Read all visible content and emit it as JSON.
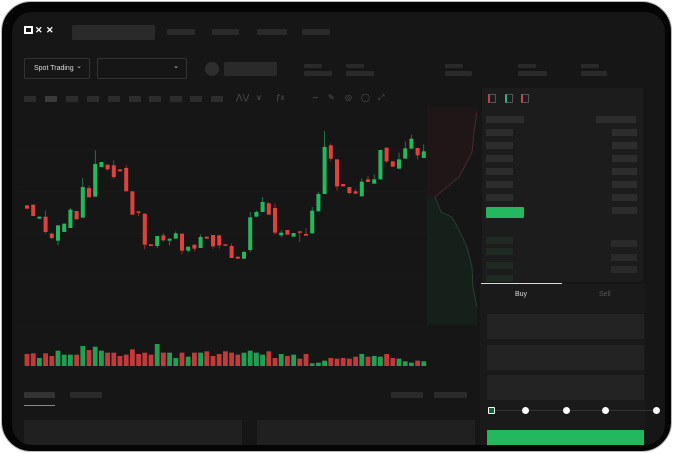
{
  "brand": {
    "logo_text": "OKX"
  },
  "market": {
    "mode_label": "Spot Trading",
    "pair_select_value": ""
  },
  "orderbook": {
    "view_icons": [
      "orderbook-both-icon",
      "orderbook-bids-icon",
      "orderbook-asks-icon"
    ]
  },
  "trade_form": {
    "tabs": [
      {
        "label": "Buy",
        "active": true
      },
      {
        "label": "Sell",
        "active": false
      }
    ],
    "slider_percent": 0,
    "slider_stops": [
      0,
      25,
      50,
      75,
      100
    ]
  },
  "colors": {
    "up": "#23b85f",
    "down": "#e0413f",
    "background": "#161616",
    "panel": "#1c1c1c"
  },
  "chart_data": {
    "type": "candlestick",
    "title": "",
    "xlabel": "",
    "ylabel": "",
    "axes_labeled": false,
    "grid": true,
    "candles_ohlc": [
      [
        170,
        160,
        170,
        160
      ],
      [
        172,
        138,
        172,
        138
      ],
      [
        130,
        136,
        136,
        130
      ],
      [
        136,
        90,
        155,
        85
      ],
      [
        85,
        72,
        88,
        68
      ],
      [
        64,
        110,
        110,
        50
      ],
      [
        90,
        115,
        115,
        90
      ],
      [
        102,
        157,
        162,
        102
      ],
      [
        153,
        128,
        153,
        128
      ],
      [
        133,
        225,
        252,
        133
      ],
      [
        222,
        194,
        230,
        194
      ],
      [
        196,
        294,
        335,
        196
      ],
      [
        285,
        300,
        300,
        285
      ],
      [
        292,
        278,
        292,
        275
      ],
      [
        290,
        255,
        305,
        250
      ],
      [
        278,
        272,
        278,
        272
      ],
      [
        282,
        212,
        290,
        212
      ],
      [
        212,
        142,
        212,
        142
      ],
      [
        152,
        148,
        152,
        138
      ],
      [
        145,
        52,
        145,
        38
      ],
      [
        53,
        48,
        53,
        48
      ],
      [
        48,
        78,
        78,
        42
      ],
      [
        80,
        65,
        87,
        62
      ],
      [
        64,
        70,
        70,
        50
      ],
      [
        70,
        86,
        92,
        70
      ],
      [
        85,
        34,
        85,
        23
      ],
      [
        34,
        46,
        46,
        29
      ],
      [
        52,
        40,
        52,
        32
      ],
      [
        42,
        75,
        82,
        42
      ],
      [
        76,
        70,
        76,
        70
      ],
      [
        81,
        47,
        81,
        40
      ],
      [
        80,
        50,
        80,
        40
      ],
      [
        53,
        50,
        53,
        50
      ],
      [
        48,
        12,
        55,
        12
      ],
      [
        16,
        10,
        16,
        10
      ],
      [
        10,
        30,
        34,
        10
      ],
      [
        36,
        134,
        150,
        30
      ],
      [
        136,
        150,
        155,
        136
      ],
      [
        150,
        180,
        195,
        150
      ],
      [
        176,
        142,
        180,
        142
      ],
      [
        162,
        88,
        175,
        82
      ],
      [
        80,
        88,
        95,
        74
      ],
      [
        96,
        82,
        96,
        82
      ],
      [
        76,
        87,
        87,
        76
      ],
      [
        92,
        90,
        92,
        60
      ],
      [
        84,
        79,
        102,
        79
      ],
      [
        86,
        154,
        165,
        86
      ],
      [
        152,
        204,
        210,
        152
      ],
      [
        204,
        345,
        393,
        204
      ],
      [
        350,
        310,
        356,
        302
      ],
      [
        308,
        227,
        308,
        214
      ],
      [
        234,
        227,
        234,
        227
      ],
      [
        225,
        207,
        225,
        203
      ],
      [
        212,
        205,
        218,
        205
      ],
      [
        197,
        241,
        250,
        197
      ],
      [
        248,
        240,
        258,
        240
      ],
      [
        235,
        248,
        263,
        235
      ],
      [
        248,
        336,
        336,
        248
      ],
      [
        343,
        302,
        343,
        298
      ],
      [
        302,
        286,
        302,
        286
      ],
      [
        280,
        308,
        328,
        280
      ],
      [
        310,
        341,
        362,
        310
      ],
      [
        340,
        370,
        382,
        340
      ],
      [
        342,
        320,
        342,
        308
      ],
      [
        312,
        332,
        353,
        312
      ]
    ],
    "volume_relative": [
      36,
      38,
      24,
      38,
      30,
      46,
      34,
      34,
      34,
      60,
      48,
      58,
      46,
      40,
      40,
      30,
      34,
      50,
      36,
      40,
      34,
      66,
      40,
      40,
      24,
      40,
      28,
      40,
      40,
      44,
      30,
      36,
      44,
      40,
      34,
      40,
      46,
      40,
      34,
      44,
      24,
      36,
      30,
      34,
      22,
      36,
      8,
      10,
      16,
      24,
      22,
      24,
      22,
      28,
      36,
      28,
      30,
      28,
      36,
      24,
      22,
      14,
      10,
      16,
      14
    ]
  }
}
